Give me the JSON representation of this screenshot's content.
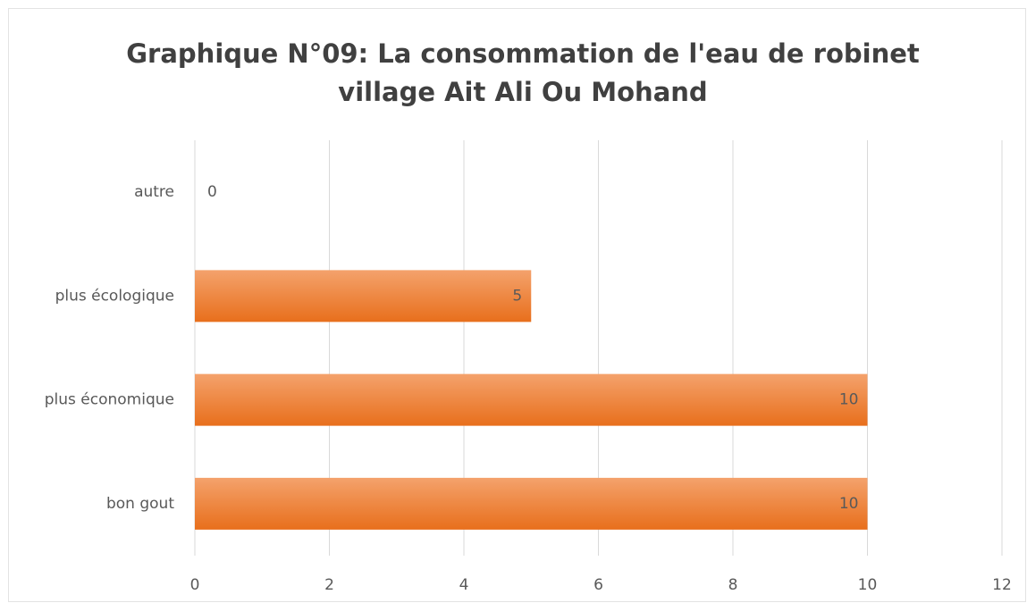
{
  "chart_data": {
    "type": "hbar",
    "title": [
      "Graphique N°09: La consommation de l'eau de robinet",
      "village Ait Ali Ou Mohand"
    ],
    "categories": [
      "autre",
      "plus écologique",
      "plus économique",
      "bon gout"
    ],
    "values": [
      0,
      5,
      10,
      10
    ],
    "color": "#ed7d31",
    "xlim": [
      0,
      12
    ],
    "xticks": [
      0,
      2,
      4,
      6,
      8,
      10,
      12
    ],
    "grid": true
  }
}
